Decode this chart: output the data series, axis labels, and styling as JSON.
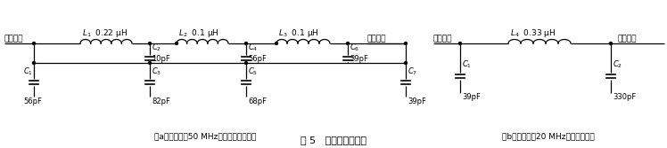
{
  "title": "图 5   滤波器电路设计",
  "caption_a": "（a）截止频率50 MHz的七阶椭圆滤波器",
  "caption_b": "（b）截止频率20 MHz的高斯滤波器",
  "line_color": "#000000",
  "bg_color": "#ffffff",
  "font_size": 6.5,
  "title_font_size": 8.0,
  "lw": 0.9
}
